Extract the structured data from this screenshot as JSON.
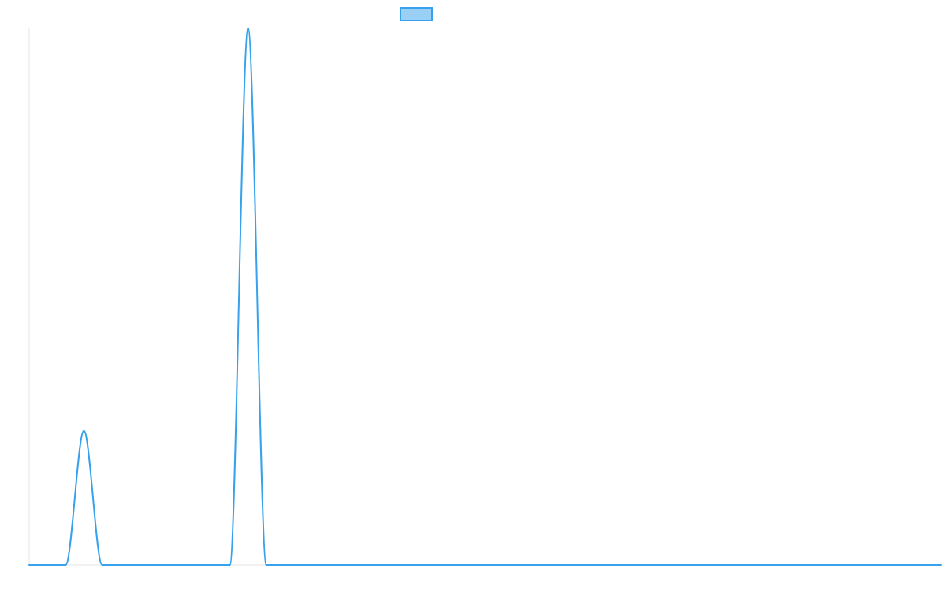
{
  "chart_data": {
    "type": "line",
    "title": "",
    "xlabel": "",
    "ylabel": "",
    "grid": false,
    "legend": "top-center",
    "x": [
      0,
      1,
      2,
      3,
      4,
      5,
      6,
      7,
      8,
      9,
      10,
      11,
      12,
      13,
      14,
      15,
      16,
      17,
      18,
      19,
      20,
      21,
      22,
      23,
      24,
      25,
      26,
      27,
      28,
      29,
      30,
      31,
      32,
      33,
      34,
      35,
      36,
      37,
      38,
      39,
      40,
      41,
      42,
      43,
      44,
      45,
      46,
      47,
      48,
      49,
      50
    ],
    "ylim": [
      0,
      100
    ],
    "series": [
      {
        "color": "#36a2eb",
        "fill": "#9ad0f5",
        "values": [
          0,
          0,
          0,
          25,
          0,
          0,
          0,
          0,
          0,
          0,
          0,
          0,
          100,
          0,
          0,
          0,
          0,
          0,
          0,
          0,
          0,
          0,
          0,
          0,
          0,
          0,
          0,
          0,
          0,
          0,
          0,
          0,
          0,
          0,
          0,
          0,
          0,
          0,
          0,
          0,
          0,
          0,
          0,
          0,
          0,
          0,
          0,
          0,
          0,
          0,
          0
        ]
      }
    ]
  }
}
